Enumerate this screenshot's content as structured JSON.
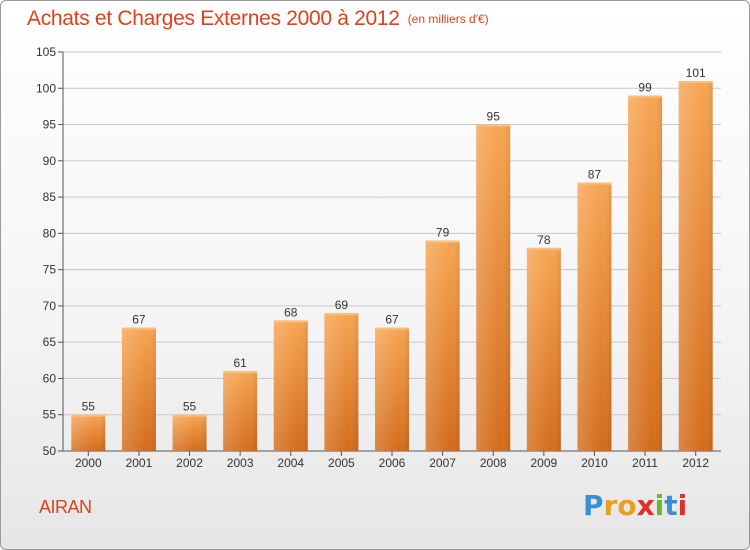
{
  "header": {
    "title": "Achats et Charges Externes 2000 à 2012",
    "subtitle": "(en milliers d'€)"
  },
  "footer": {
    "place": "AIRAN",
    "logo": "Proxiti"
  },
  "colors": {
    "accent": "#e0401a",
    "bar_top": "#f7a552",
    "bar_bottom": "#d36c1c",
    "grid": "#c8c8c8"
  },
  "chart_data": {
    "type": "bar",
    "title": "Achats et Charges Externes 2000 à 2012",
    "subtitle": "(en milliers d'€)",
    "xlabel": "",
    "ylabel": "",
    "categories": [
      "2000",
      "2001",
      "2002",
      "2003",
      "2004",
      "2005",
      "2006",
      "2007",
      "2008",
      "2009",
      "2010",
      "2011",
      "2012"
    ],
    "values": [
      55,
      67,
      55,
      61,
      68,
      69,
      67,
      79,
      95,
      78,
      87,
      99,
      101
    ],
    "ylim": [
      50,
      105
    ],
    "yticks": [
      50,
      55,
      60,
      65,
      70,
      75,
      80,
      85,
      90,
      95,
      100,
      105
    ],
    "grid": true,
    "data_labels": true
  }
}
